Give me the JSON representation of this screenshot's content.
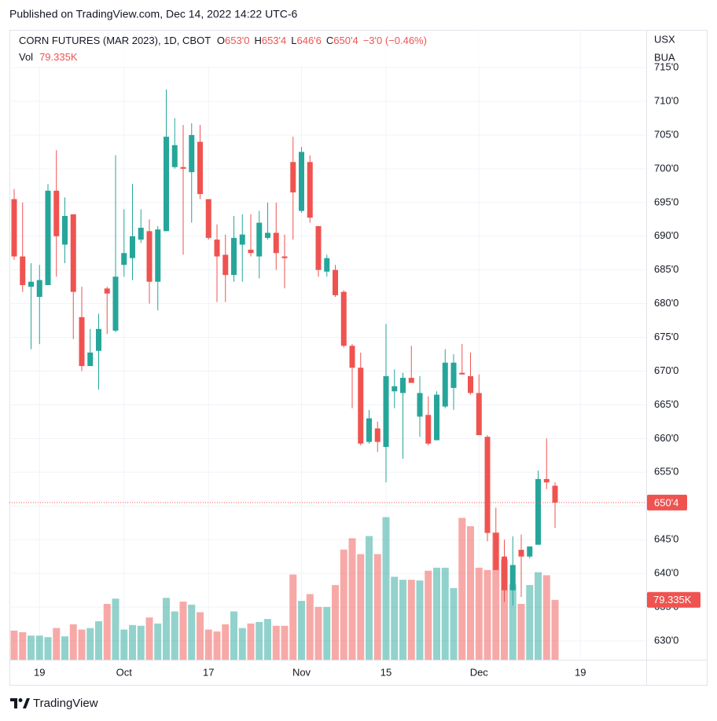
{
  "published": "Published on TradingView.com, Dec 14, 2022 14:22 UTC-6",
  "footer": "TradingView",
  "chart_data": {
    "type": "candlestick",
    "title": "CORN FUTURES (MAR 2023), 1D, CBOT",
    "ohlc_legend": [
      {
        "key": "O",
        "value": 653,
        "label": "653'0"
      },
      {
        "key": "H",
        "value": 653.5,
        "label": "653'4"
      },
      {
        "key": "L",
        "value": 646.75,
        "label": "646'6"
      },
      {
        "key": "C",
        "value": 650.5,
        "label": "650'4"
      }
    ],
    "change": "−3'0 (−0.46%)",
    "volume_key": "Vol",
    "axis_units": [
      "USX",
      "BUA"
    ],
    "categories": [
      null,
      null,
      null,
      "19",
      null,
      null,
      null,
      null,
      null,
      null,
      null,
      null,
      null,
      "Oct",
      null,
      null,
      null,
      null,
      null,
      null,
      null,
      null,
      null,
      "17",
      null,
      null,
      null,
      null,
      null,
      null,
      null,
      null,
      null,
      null,
      "Nov",
      null,
      null,
      null,
      null,
      null,
      null,
      null,
      null,
      null,
      "15",
      null,
      null,
      null,
      null,
      null,
      null,
      null,
      null,
      null,
      null,
      "Dec",
      null,
      null,
      null,
      null,
      null,
      null,
      null,
      null,
      null,
      null,
      null,
      "19"
    ],
    "open": [
      695.5,
      687,
      682.5,
      681,
      682.75,
      696.75,
      688.75,
      693.25,
      678,
      670.75,
      673,
      682.25,
      676,
      685.75,
      686.75,
      689.5,
      690.75,
      683.25,
      690.75,
      700.25,
      700.25,
      699.5,
      704,
      695.5,
      689.5,
      687.25,
      684.25,
      688.75,
      688,
      687,
      689.75,
      690.5,
      687,
      701,
      693.75,
      701,
      691.5,
      684.75,
      685,
      681.75,
      673.75,
      670.5,
      659.5,
      661.5,
      658.75,
      667,
      666.75,
      669,
      663.25,
      663.5,
      659.75,
      664.75,
      667.5,
      669.75,
      669.25,
      666.75,
      660.25,
      646,
      642.5,
      637.5,
      643.5,
      642.5,
      644.25,
      654,
      653,
      null,
      null,
      null
    ],
    "high": [
      697,
      695,
      686,
      685.75,
      697.75,
      702.75,
      695.75,
      693.25,
      682.5,
      676.25,
      678.5,
      682.5,
      702,
      694,
      697.75,
      694,
      692.5,
      691.5,
      711.75,
      707.5,
      706.5,
      706.75,
      706.5,
      695.5,
      691.75,
      690.25,
      693,
      693.25,
      693.25,
      693.75,
      695,
      695,
      690.25,
      704.75,
      703.25,
      702,
      691.5,
      687.25,
      685.75,
      682,
      674,
      672.75,
      664.25,
      662.5,
      677,
      670.25,
      669.75,
      673.75,
      669.25,
      666.25,
      667,
      673.25,
      672.5,
      674,
      672.75,
      669.5,
      660.5,
      649.75,
      645,
      645.5,
      645.75,
      644,
      655.25,
      660,
      653.5,
      null,
      null,
      null
    ],
    "low": [
      686.5,
      681.75,
      673.25,
      674,
      682.75,
      684,
      686,
      674.75,
      670,
      670.75,
      667.25,
      675.5,
      675.75,
      684,
      683.5,
      689,
      680,
      679,
      690.75,
      700,
      687.25,
      692,
      695.5,
      689.5,
      680.25,
      680.25,
      683.25,
      683.25,
      687,
      683.75,
      689.5,
      685,
      682.25,
      689.5,
      693.5,
      692,
      684,
      684,
      681,
      673.5,
      664.5,
      659,
      659.25,
      658,
      653.5,
      664.5,
      657,
      668.25,
      660.25,
      659,
      659.75,
      664.5,
      664.25,
      669.5,
      666.5,
      660.5,
      644.75,
      640.5,
      635.75,
      635.25,
      636.5,
      642.25,
      644.25,
      652.5,
      646.75,
      null,
      null,
      null
    ],
    "close": [
      687,
      682.75,
      683.25,
      683.5,
      696.75,
      690,
      693,
      681.75,
      670.75,
      672.75,
      676.25,
      681.5,
      684,
      687.5,
      690,
      691.25,
      683.25,
      691,
      704.75,
      703.5,
      700,
      705,
      696.25,
      689.75,
      687,
      684.25,
      689.75,
      690.25,
      687.5,
      692,
      690.5,
      687.5,
      686.75,
      696.5,
      702.5,
      692.75,
      685,
      686.75,
      681.25,
      673.75,
      670.5,
      659.25,
      663,
      659.5,
      669.25,
      667.75,
      669,
      668.25,
      666.75,
      659.25,
      666.5,
      671.25,
      671.25,
      669.5,
      666.75,
      660.5,
      646,
      640.5,
      637.5,
      641.25,
      642.5,
      644,
      654,
      653.5,
      650.5,
      null,
      null,
      null
    ],
    "volume": [
      38600,
      36500,
      32000,
      32000,
      30000,
      42000,
      31000,
      47000,
      40000,
      42000,
      51000,
      74000,
      81000,
      40000,
      46000,
      45000,
      56000,
      48000,
      82000,
      64000,
      77000,
      73000,
      63000,
      40000,
      37500,
      47000,
      64000,
      42000,
      48000,
      50000,
      54000,
      45000,
      45000,
      113000,
      78000,
      87000,
      70000,
      70000,
      99000,
      146000,
      161000,
      140000,
      164000,
      140000,
      189000,
      110000,
      106000,
      106000,
      105000,
      118000,
      122000,
      122000,
      95000,
      188000,
      177000,
      122000,
      119000,
      169000,
      133000,
      100000,
      74000,
      99000,
      116000,
      112000,
      79335,
      null,
      null,
      null
    ],
    "last_price": {
      "value": 650.5,
      "label": "650'4"
    },
    "last_volume": {
      "value": 79335,
      "label": "79.335K"
    },
    "up_color": "#26a69a",
    "down_color": "#ef5350",
    "ylim": [
      627.2,
      720.6
    ],
    "y2lim": [
      0,
      835000
    ],
    "yticks": [
      {
        "value": 630,
        "label": "630'0"
      },
      {
        "value": 635,
        "label": "635'0"
      },
      {
        "value": 640,
        "label": "640'0"
      },
      {
        "value": 645,
        "label": "645'0"
      },
      {
        "value": 650,
        "label": "650'0"
      },
      {
        "value": 655,
        "label": "655'0"
      },
      {
        "value": 660,
        "label": "660'0"
      },
      {
        "value": 665,
        "label": "665'0"
      },
      {
        "value": 670,
        "label": "670'0"
      },
      {
        "value": 675,
        "label": "675'0"
      },
      {
        "value": 680,
        "label": "680'0"
      },
      {
        "value": 685,
        "label": "685'0"
      },
      {
        "value": 690,
        "label": "690'0"
      },
      {
        "value": 695,
        "label": "695'0"
      },
      {
        "value": 700,
        "label": "700'0"
      },
      {
        "value": 705,
        "label": "705'0"
      },
      {
        "value": 710,
        "label": "710'0"
      },
      {
        "value": 715,
        "label": "715'0"
      }
    ],
    "grid": true
  }
}
